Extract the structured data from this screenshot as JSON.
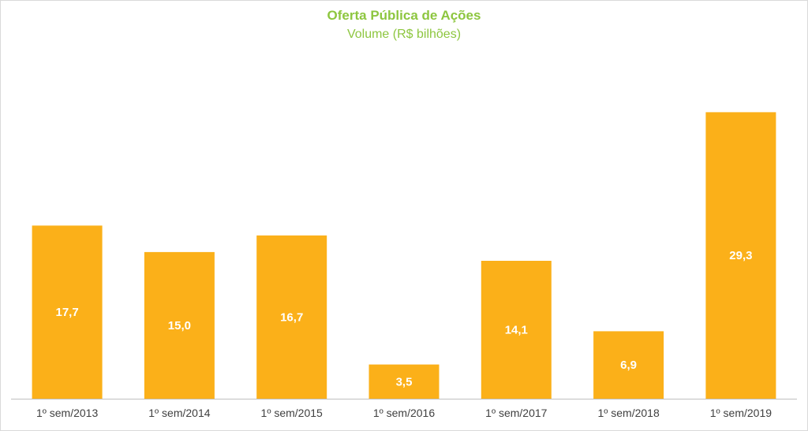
{
  "chart_data": {
    "type": "bar",
    "title": "Oferta Pública de Ações",
    "subtitle": "Volume (R$ bilhões)",
    "xlabel": "",
    "ylabel": "",
    "categories": [
      "1º sem/2013",
      "1º sem/2014",
      "1º sem/2015",
      "1º sem/2016",
      "1º sem/2017",
      "1º sem/2018",
      "1º sem/2019"
    ],
    "values": [
      17.7,
      15.0,
      16.7,
      3.5,
      14.1,
      6.9,
      29.3
    ],
    "value_labels": [
      "17,7",
      "15,0",
      "16,7",
      "3,5",
      "14,1",
      "6,9",
      "29,3"
    ],
    "ylim": [
      0,
      32
    ],
    "grid": false,
    "legend": "none",
    "bar_color": "#fbb019",
    "title_color": "#8dc63f",
    "axis_color": "#bfbfbf"
  }
}
